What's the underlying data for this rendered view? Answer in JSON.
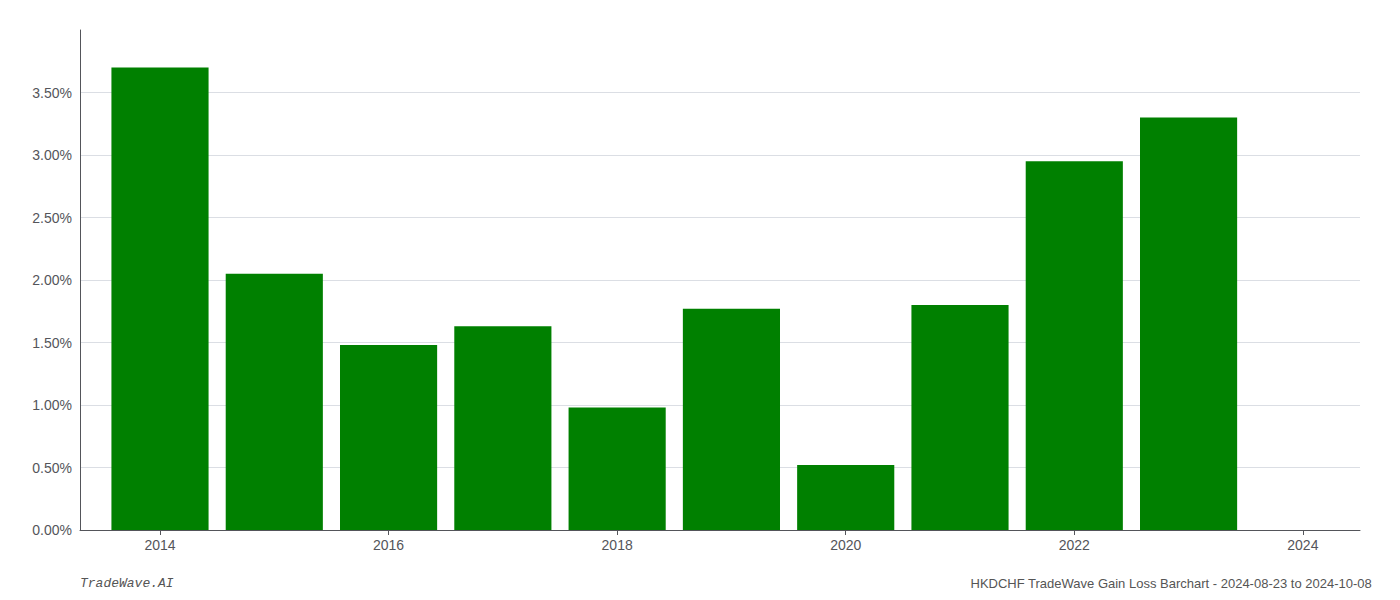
{
  "chart_data": {
    "type": "bar",
    "x": [
      2014,
      2015,
      2016,
      2017,
      2018,
      2019,
      2020,
      2021,
      2022,
      2023
    ],
    "values": [
      0.037,
      0.0205,
      0.0148,
      0.0163,
      0.0098,
      0.0177,
      0.0052,
      0.018,
      0.0295,
      0.033
    ],
    "color": "#008000",
    "xlim": [
      2013.3,
      2024.5
    ],
    "xticks": [
      2014,
      2016,
      2018,
      2020,
      2022,
      2024
    ],
    "ylim": [
      0,
      0.04
    ],
    "yticks": [
      {
        "value": 0.0,
        "label": "0.00%"
      },
      {
        "value": 0.005,
        "label": "0.50%"
      },
      {
        "value": 0.01,
        "label": "1.00%"
      },
      {
        "value": 0.015,
        "label": "1.50%"
      },
      {
        "value": 0.02,
        "label": "2.00%"
      },
      {
        "value": 0.025,
        "label": "2.50%"
      },
      {
        "value": 0.03,
        "label": "3.00%"
      },
      {
        "value": 0.035,
        "label": "3.50%"
      }
    ],
    "grid": true,
    "annotations": [
      "TradeWave.AI",
      "HKDCHF TradeWave Gain Loss Barchart - 2024-08-23 to 2024-10-08"
    ]
  }
}
